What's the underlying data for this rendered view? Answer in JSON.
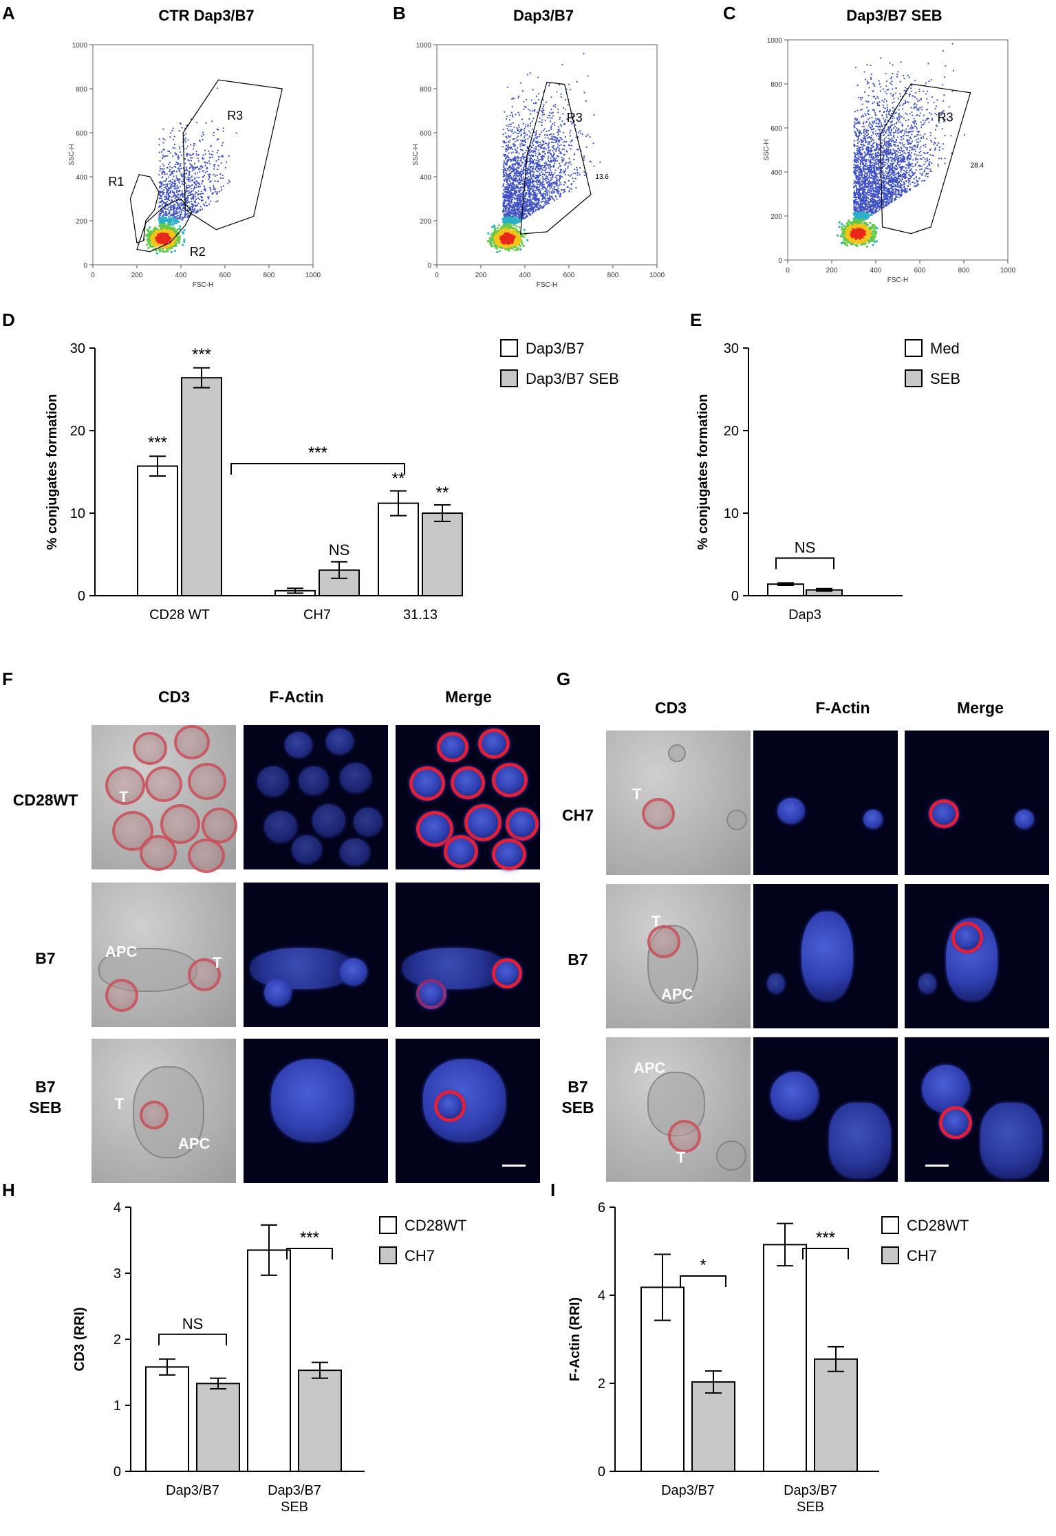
{
  "panel_letters": [
    "A",
    "B",
    "C",
    "D",
    "E",
    "F",
    "G",
    "H",
    "I"
  ],
  "flow": {
    "titles": [
      "CTR Dap3/B7",
      "Dap3/B7",
      "Dap3/B7 SEB"
    ],
    "xlabel": "FSC-H",
    "ylabel": "SSC-H",
    "ticks": [
      "0",
      "200",
      "400",
      "600",
      "800",
      "1000"
    ],
    "gates": {
      "A": [
        "R1",
        "R2",
        "R3"
      ],
      "B": [
        "R3",
        "13.6"
      ],
      "C": [
        "R3",
        "28.4"
      ]
    }
  },
  "micro": {
    "col_headers": [
      "CD3",
      "F-Actin",
      "Merge"
    ],
    "F_rows": [
      "CD28WT",
      "B7",
      "B7\nSEB"
    ],
    "G_rows": [
      "CH7",
      "B7",
      "B7\nSEB"
    ],
    "cell_labels": {
      "t": "T",
      "apc": "APC"
    }
  },
  "chart_data": [
    {
      "panel": "D",
      "type": "bar",
      "ylabel": "% conjugates formation",
      "ylim": [
        0,
        30
      ],
      "yticks": [
        "0",
        "10",
        "20",
        "30"
      ],
      "categories": [
        "CD28 WT",
        "CH7",
        "31.13"
      ],
      "series": [
        {
          "name": "Dap3/B7",
          "values": [
            15.7,
            0.6,
            11.2
          ],
          "errors": [
            1.2,
            0.3,
            1.5
          ],
          "color": "#ffffff"
        },
        {
          "name": "Dap3/B7 SEB",
          "values": [
            26.4,
            3.1,
            10.0
          ],
          "errors": [
            1.2,
            1.0,
            1.0
          ],
          "color": "#c8c8c8"
        }
      ],
      "annotations": [
        {
          "text": "***",
          "target": "CD28 WT / Dap3/B7"
        },
        {
          "text": "***",
          "target": "CD28 WT / Dap3/B7 SEB"
        },
        {
          "text": "NS",
          "target": "CH7"
        },
        {
          "text": "**",
          "target": "31.13 / Dap3/B7"
        },
        {
          "text": "**",
          "target": "31.13 / Dap3/B7 SEB"
        },
        {
          "text": "***",
          "target": "bracket CD28 WT vs CH7 and 31.13"
        }
      ],
      "legend": "top-right"
    },
    {
      "panel": "E",
      "type": "bar",
      "ylabel": "% conjugates formation",
      "ylim": [
        0,
        30
      ],
      "yticks": [
        "0",
        "10",
        "20",
        "30"
      ],
      "categories": [
        "Dap3"
      ],
      "series": [
        {
          "name": "Med",
          "values": [
            1.4
          ],
          "errors": [
            0.15
          ],
          "color": "#ffffff"
        },
        {
          "name": "SEB",
          "values": [
            0.7
          ],
          "errors": [
            0.15
          ],
          "color": "#c8c8c8"
        }
      ],
      "annotations": [
        {
          "text": "NS",
          "target": "Dap3 bracket"
        }
      ],
      "legend": "top-right"
    },
    {
      "panel": "H",
      "type": "bar",
      "ylabel": "CD3 (RRI)",
      "ylim": [
        0,
        4
      ],
      "yticks": [
        "0",
        "1",
        "2",
        "3",
        "4"
      ],
      "categories": [
        "Dap3/B7",
        "Dap3/B7\nSEB"
      ],
      "series": [
        {
          "name": "CD28WT",
          "values": [
            1.58,
            3.35
          ],
          "errors": [
            0.12,
            0.38
          ],
          "color": "#ffffff"
        },
        {
          "name": "CH7",
          "values": [
            1.33,
            1.53
          ],
          "errors": [
            0.08,
            0.12
          ],
          "color": "#c8c8c8"
        }
      ],
      "annotations": [
        {
          "text": "NS",
          "target": "Dap3/B7 bracket"
        },
        {
          "text": "***",
          "target": "Dap3/B7 SEB bracket"
        }
      ],
      "legend": "top-right"
    },
    {
      "panel": "I",
      "type": "bar",
      "ylabel": "F-Actin (RRI)",
      "ylim": [
        0,
        6
      ],
      "yticks": [
        "0",
        "2",
        "4",
        "6"
      ],
      "categories": [
        "Dap3/B7",
        "Dap3/B7\nSEB"
      ],
      "series": [
        {
          "name": "CD28WT",
          "values": [
            4.18,
            5.15
          ],
          "errors": [
            0.75,
            0.48
          ],
          "color": "#ffffff"
        },
        {
          "name": "CH7",
          "values": [
            2.03,
            2.55
          ],
          "errors": [
            0.25,
            0.28
          ],
          "color": "#c8c8c8"
        }
      ],
      "annotations": [
        {
          "text": "*",
          "target": "Dap3/B7 bracket"
        },
        {
          "text": "***",
          "target": "Dap3/B7 SEB bracket"
        }
      ],
      "legend": "top-right"
    }
  ]
}
